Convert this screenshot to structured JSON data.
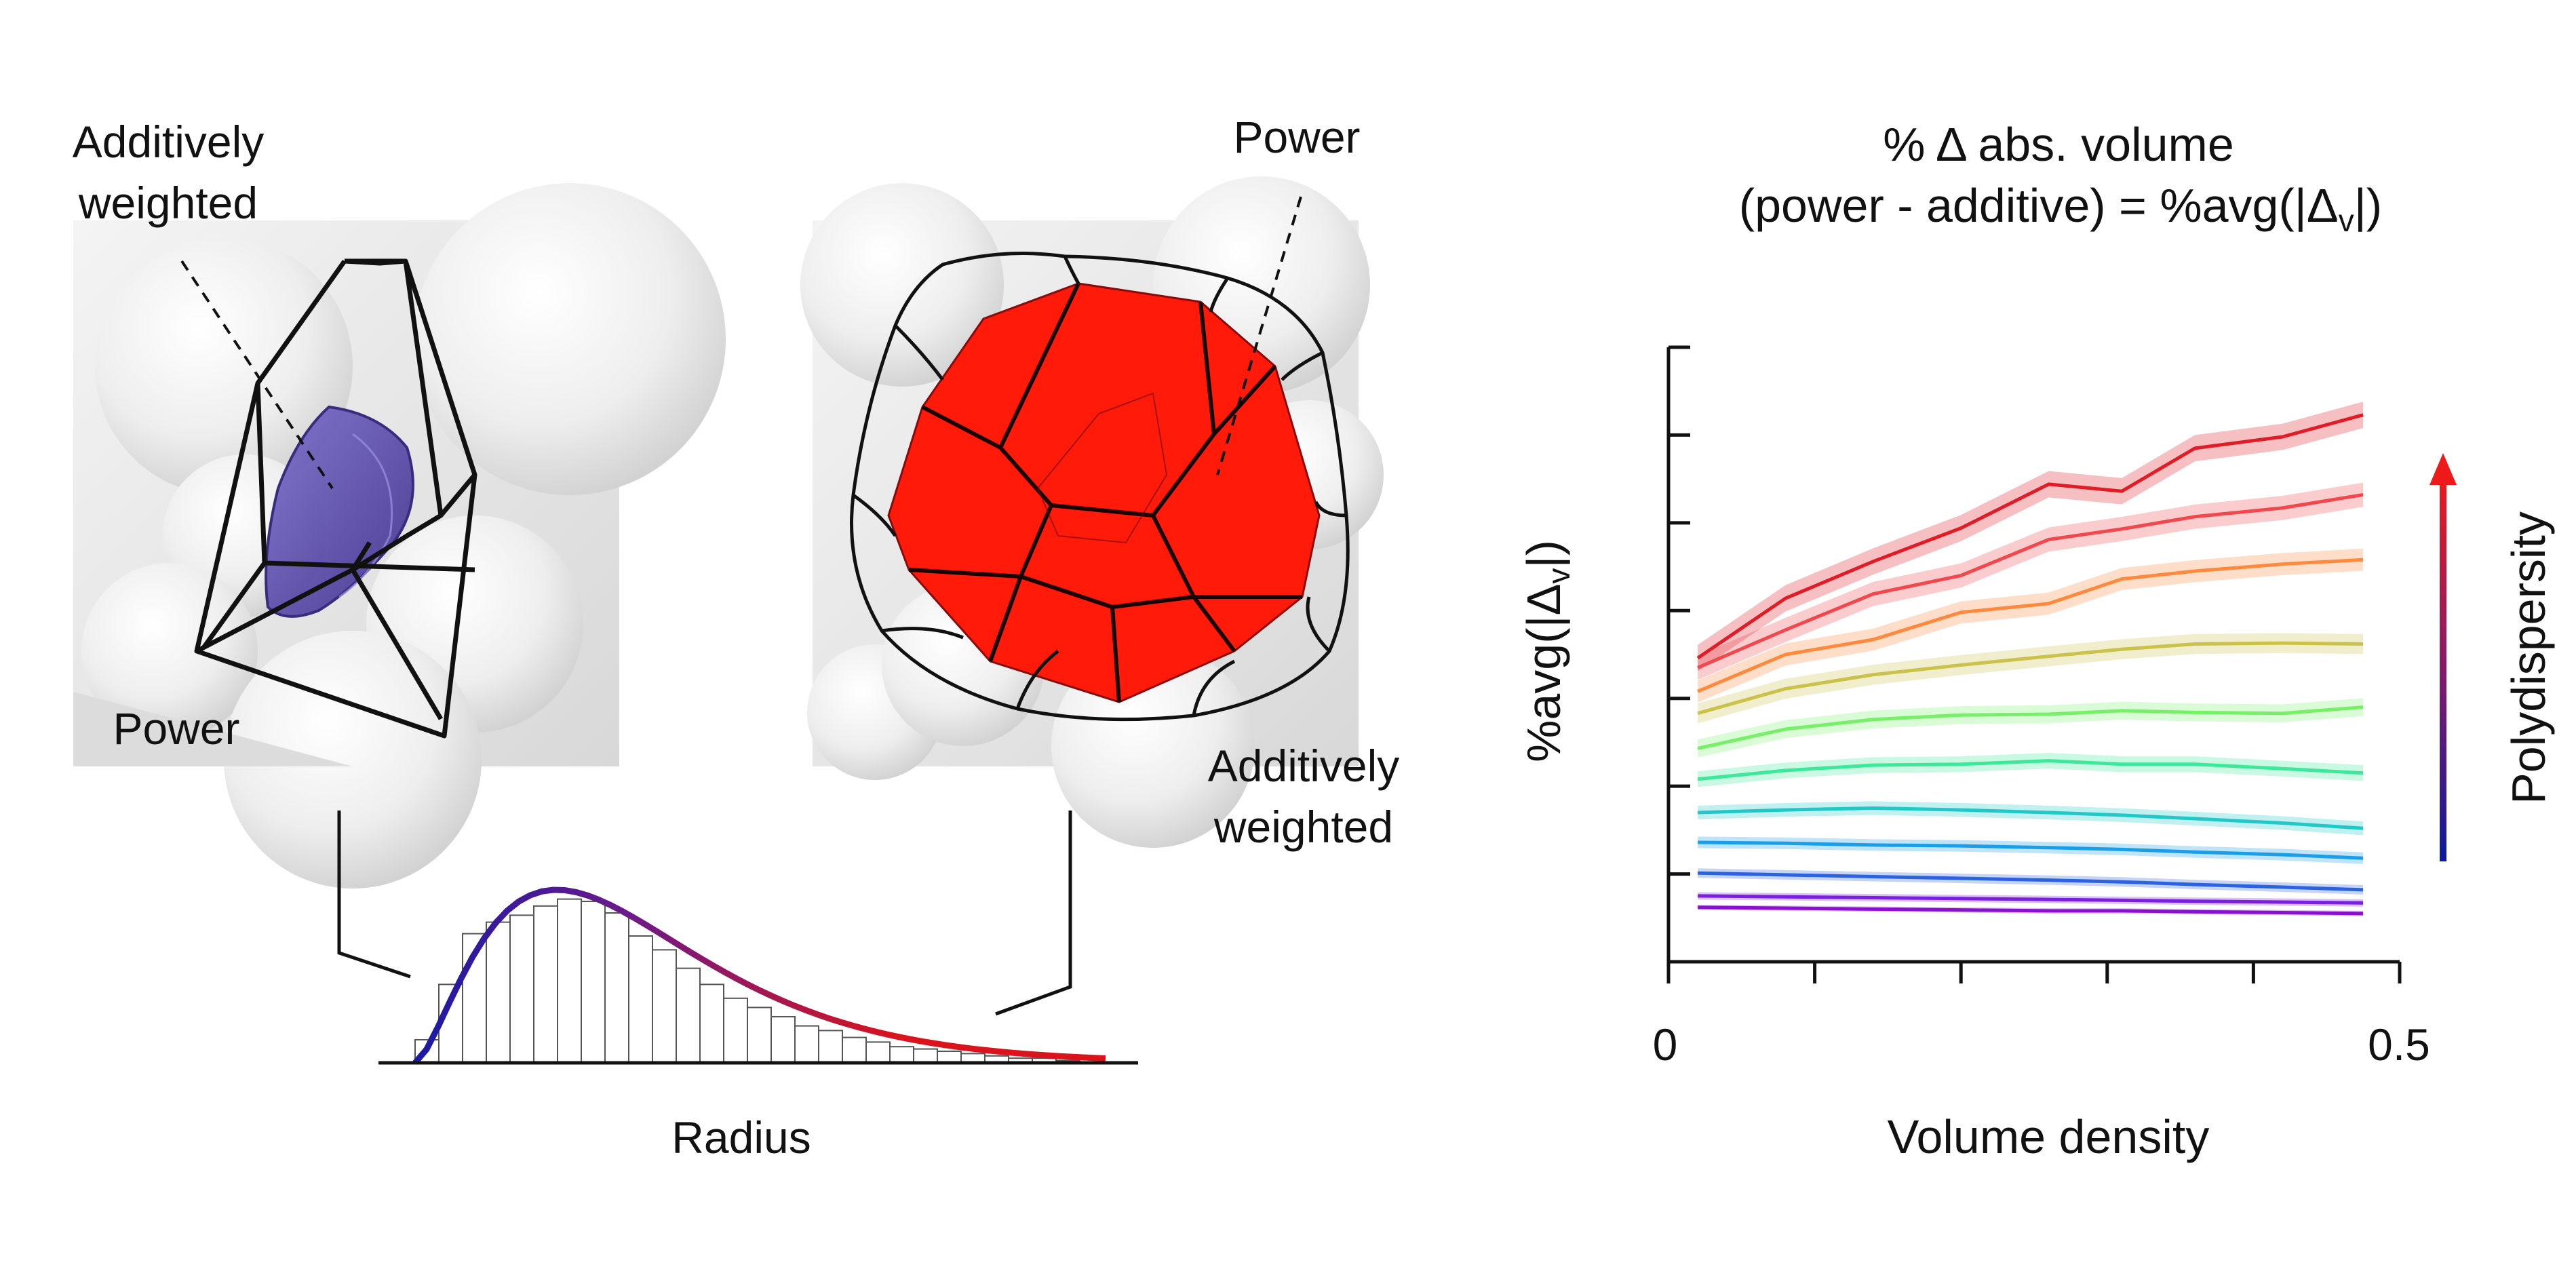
{
  "figure": {
    "left_cell": {
      "label_additive_line1": "Additively",
      "label_additive_line2": "weighted",
      "label_power": "Power",
      "cell_color": "#5b4aa6"
    },
    "right_cell": {
      "label_power": "Power",
      "label_additive_line1": "Additively",
      "label_additive_line2": "weighted",
      "cell_color": "#ff1a0a"
    },
    "histogram": {
      "xlabel": "Radius",
      "bar_heights": [
        0.1,
        0.34,
        0.56,
        0.61,
        0.64,
        0.68,
        0.71,
        0.7,
        0.65,
        0.55,
        0.49,
        0.41,
        0.34,
        0.28,
        0.24,
        0.2,
        0.16,
        0.14,
        0.11,
        0.09,
        0.07,
        0.06,
        0.05,
        0.04,
        0.03,
        0.02,
        0.02,
        0.01
      ],
      "curve_color_start": "#1a1aa6",
      "curve_color_mid": "#6a1a8a",
      "curve_color_end": "#d9141c"
    }
  },
  "chart_data": {
    "type": "line",
    "title_line1": "% Δ abs. volume",
    "title_line2_prefix": "(power - additive) = %avg(|Δ",
    "title_line2_sub": "v",
    "title_line2_suffix": "|)",
    "ylabel_prefix": "%avg(|Δ",
    "ylabel_sub": "v",
    "ylabel_suffix": "|)",
    "xlabel": "Volume density",
    "x_tick_labels": [
      "0",
      "0.5"
    ],
    "xlim": [
      0,
      0.5
    ],
    "ylim": [
      0,
      7
    ],
    "colorbar_label": "Polydispersity",
    "x": [
      0.02,
      0.08,
      0.14,
      0.2,
      0.26,
      0.31,
      0.36,
      0.42,
      0.475
    ],
    "series": [
      {
        "name": "p1",
        "color": "#8a10d0",
        "values": [
          0.62,
          0.61,
          0.6,
          0.59,
          0.58,
          0.58,
          0.57,
          0.56,
          0.55
        ]
      },
      {
        "name": "p2",
        "color": "#7a1ee0",
        "values": [
          0.75,
          0.74,
          0.73,
          0.72,
          0.71,
          0.7,
          0.69,
          0.68,
          0.67
        ]
      },
      {
        "name": "p3",
        "color": "#2a62e0",
        "values": [
          1.01,
          0.99,
          0.97,
          0.95,
          0.93,
          0.91,
          0.88,
          0.85,
          0.82
        ]
      },
      {
        "name": "p4",
        "color": "#1a9ee8",
        "values": [
          1.36,
          1.35,
          1.33,
          1.32,
          1.3,
          1.28,
          1.25,
          1.22,
          1.18
        ]
      },
      {
        "name": "p5",
        "color": "#22c8c8",
        "values": [
          1.7,
          1.73,
          1.75,
          1.73,
          1.7,
          1.67,
          1.63,
          1.58,
          1.52
        ]
      },
      {
        "name": "p6",
        "color": "#3ee89a",
        "values": [
          2.08,
          2.18,
          2.24,
          2.25,
          2.29,
          2.25,
          2.25,
          2.2,
          2.15
        ]
      },
      {
        "name": "p7",
        "color": "#78ef68",
        "values": [
          2.43,
          2.65,
          2.76,
          2.81,
          2.82,
          2.86,
          2.84,
          2.83,
          2.9
        ]
      },
      {
        "name": "p8",
        "color": "#cac24a",
        "values": [
          2.83,
          3.11,
          3.27,
          3.38,
          3.48,
          3.56,
          3.62,
          3.63,
          3.62
        ]
      },
      {
        "name": "p9",
        "color": "#ff8a3e",
        "values": [
          3.08,
          3.5,
          3.67,
          3.98,
          4.08,
          4.36,
          4.45,
          4.53,
          4.58
        ]
      },
      {
        "name": "p10",
        "color": "#f0484c",
        "values": [
          3.35,
          3.78,
          4.19,
          4.4,
          4.81,
          4.93,
          5.07,
          5.17,
          5.32
        ]
      },
      {
        "name": "p11",
        "color": "#e01c26",
        "values": [
          3.46,
          4.14,
          4.56,
          4.94,
          5.44,
          5.36,
          5.85,
          5.98,
          6.23
        ]
      }
    ]
  }
}
